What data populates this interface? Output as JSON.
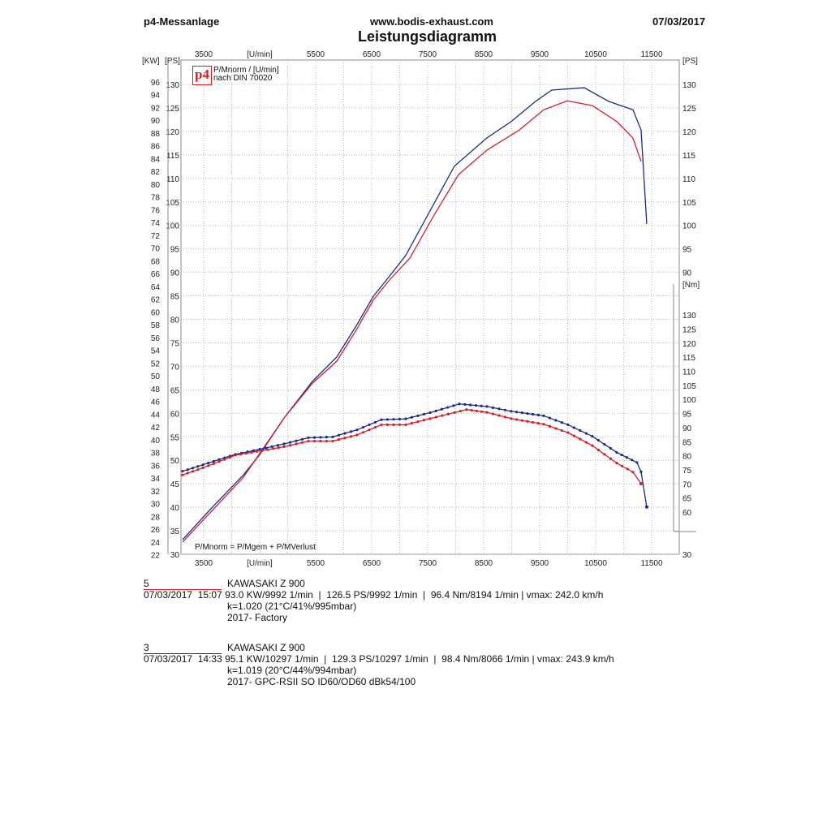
{
  "header": {
    "left": "p4-Messanlage",
    "center": "www.bodis-exhaust.com",
    "right": "07/03/2017",
    "title": "Leistungsdiagramm"
  },
  "legend": {
    "logo": "p4",
    "line1": "P/Mnorm / [U/min]",
    "line2": "nach DIN 70020",
    "footnote": "P/Mnorm = P/Mgem + P/MVerlust"
  },
  "colors": {
    "run5": "#d0202a",
    "run3": "#1a2a8a",
    "grid": "#b8b8b8"
  },
  "chart_data": {
    "type": "line",
    "title": "Leistungsdiagramm",
    "xlabel": "[U/min]",
    "ylabel_left_kw": "[KW]",
    "ylabel_left_ps": "[PS]",
    "ylabel_right_ps": "[PS]",
    "ylabel_right_nm": "[Nm]",
    "xlim": [
      3100,
      12000
    ],
    "ylim_ps": [
      30,
      135
    ],
    "ylim_nm": [
      53,
      141
    ],
    "x_ticks": [
      "3500",
      "[U/min]",
      "5500",
      "6500",
      "7500",
      "8500",
      "9500",
      "10500",
      "11500"
    ],
    "x_tick_values": [
      3500,
      4500,
      5500,
      6500,
      7500,
      8500,
      9500,
      10500,
      11500
    ],
    "ps_ticks": [
      30,
      35,
      40,
      45,
      50,
      55,
      60,
      65,
      70,
      75,
      80,
      85,
      90,
      95,
      100,
      105,
      110,
      115,
      120,
      125,
      130
    ],
    "right_ps_ticks": [
      30,
      90,
      95,
      100,
      105,
      110,
      115,
      120,
      125,
      130
    ],
    "kw_ticks": [
      22,
      24,
      26,
      28,
      30,
      32,
      34,
      36,
      38,
      40,
      42,
      44,
      46,
      48,
      50,
      52,
      54,
      56,
      58,
      60,
      62,
      64,
      66,
      68,
      70,
      72,
      74,
      76,
      78,
      80,
      82,
      84,
      86,
      88,
      90,
      92,
      94,
      96
    ],
    "nm_ticks": [
      60,
      65,
      70,
      75,
      80,
      85,
      90,
      95,
      100,
      105,
      110,
      115,
      120,
      125,
      130
    ],
    "grid": true,
    "series": [
      {
        "name": "Run 3 Power (PS)",
        "color": "#1a2a8a",
        "axis": "ps",
        "markers": false,
        "x": [
          3123,
          3630,
          4210,
          4500,
          4935,
          5442,
          5877,
          6239,
          6529,
          6819,
          7108,
          7543,
          7977,
          8557,
          8992,
          9427,
          9716,
          10296,
          10731,
          11166,
          11311,
          11412
        ],
        "y": [
          33.1,
          39.7,
          46.9,
          51.2,
          59.0,
          66.8,
          72.0,
          78.9,
          84.9,
          89.2,
          93.6,
          103.1,
          112.6,
          118.6,
          122.1,
          126.4,
          128.8,
          129.3,
          126.4,
          124.6,
          120.3,
          100.3
        ]
      },
      {
        "name": "Run 5 Power (PS)",
        "color": "#d0202a",
        "axis": "ps",
        "markers": false,
        "x": [
          3123,
          4210,
          4935,
          5442,
          5877,
          6239,
          6529,
          6819,
          7180,
          7615,
          8050,
          8557,
          9137,
          9572,
          9992,
          10441,
          10876,
          11166,
          11311
        ],
        "y": [
          32.6,
          46.4,
          59.0,
          66.4,
          71.1,
          78.0,
          84.1,
          88.4,
          93.0,
          102.2,
          110.8,
          116.0,
          120.3,
          124.6,
          126.5,
          125.5,
          122.1,
          118.6,
          113.6
        ]
      },
      {
        "name": "Run 3 Torque (Nm)",
        "color": "#1a2a8a",
        "axis": "nm",
        "markers": true,
        "x": [
          3123,
          3486,
          4065,
          4500,
          4935,
          5370,
          5804,
          6239,
          6673,
          7108,
          7543,
          8066,
          8557,
          8992,
          9572,
          10006,
          10441,
          10876,
          11238,
          11311,
          11412
        ],
        "y": [
          74.5,
          76.8,
          80.5,
          82.3,
          84.2,
          86.4,
          86.7,
          89.2,
          92.8,
          93.1,
          95.3,
          98.4,
          97.5,
          95.8,
          94.2,
          91.0,
          86.9,
          81.2,
          77.6,
          74.3,
          61.8
        ]
      },
      {
        "name": "Run 5 Torque (Nm)",
        "color": "#d0202a",
        "axis": "nm",
        "markers": true,
        "x": [
          3123,
          3486,
          4065,
          4935,
          5370,
          5804,
          6239,
          6673,
          7108,
          7543,
          8194,
          8557,
          8992,
          9572,
          10006,
          10441,
          10876,
          11166,
          11311
        ],
        "y": [
          73.2,
          75.7,
          80.2,
          83.2,
          85.2,
          85.2,
          87.4,
          91.0,
          91.0,
          93.2,
          96.4,
          95.4,
          93.2,
          91.2,
          88.2,
          83.6,
          77.4,
          74.2,
          70.1
        ]
      }
    ]
  },
  "runs": [
    {
      "number": "5",
      "datetime": "07/03/2017  15:07",
      "model": "KAWASAKI Z 900",
      "stats": "93.0 KW/9992 1/min  |  126.5 PS/9992 1/min  |  96.4 Nm/8194 1/min | vmax: 242.0 km/h",
      "k": "k=1.020 (21°C/41%/995mbar)",
      "description": "2017- Factory",
      "color": "#d0202a"
    },
    {
      "number": "3",
      "datetime": "07/03/2017  14:33",
      "model": "KAWASAKI Z 900",
      "stats": "95.1 KW/10297 1/min  |  129.3 PS/10297 1/min  |  98.4 Nm/8066 1/min | vmax: 243.9 km/h",
      "k": "k=1.019 (20°C/44%/994mbar)",
      "description": "2017- GPC-RSII SO ID60/OD60 dBk54/100",
      "color": "#1a2a8a"
    }
  ]
}
